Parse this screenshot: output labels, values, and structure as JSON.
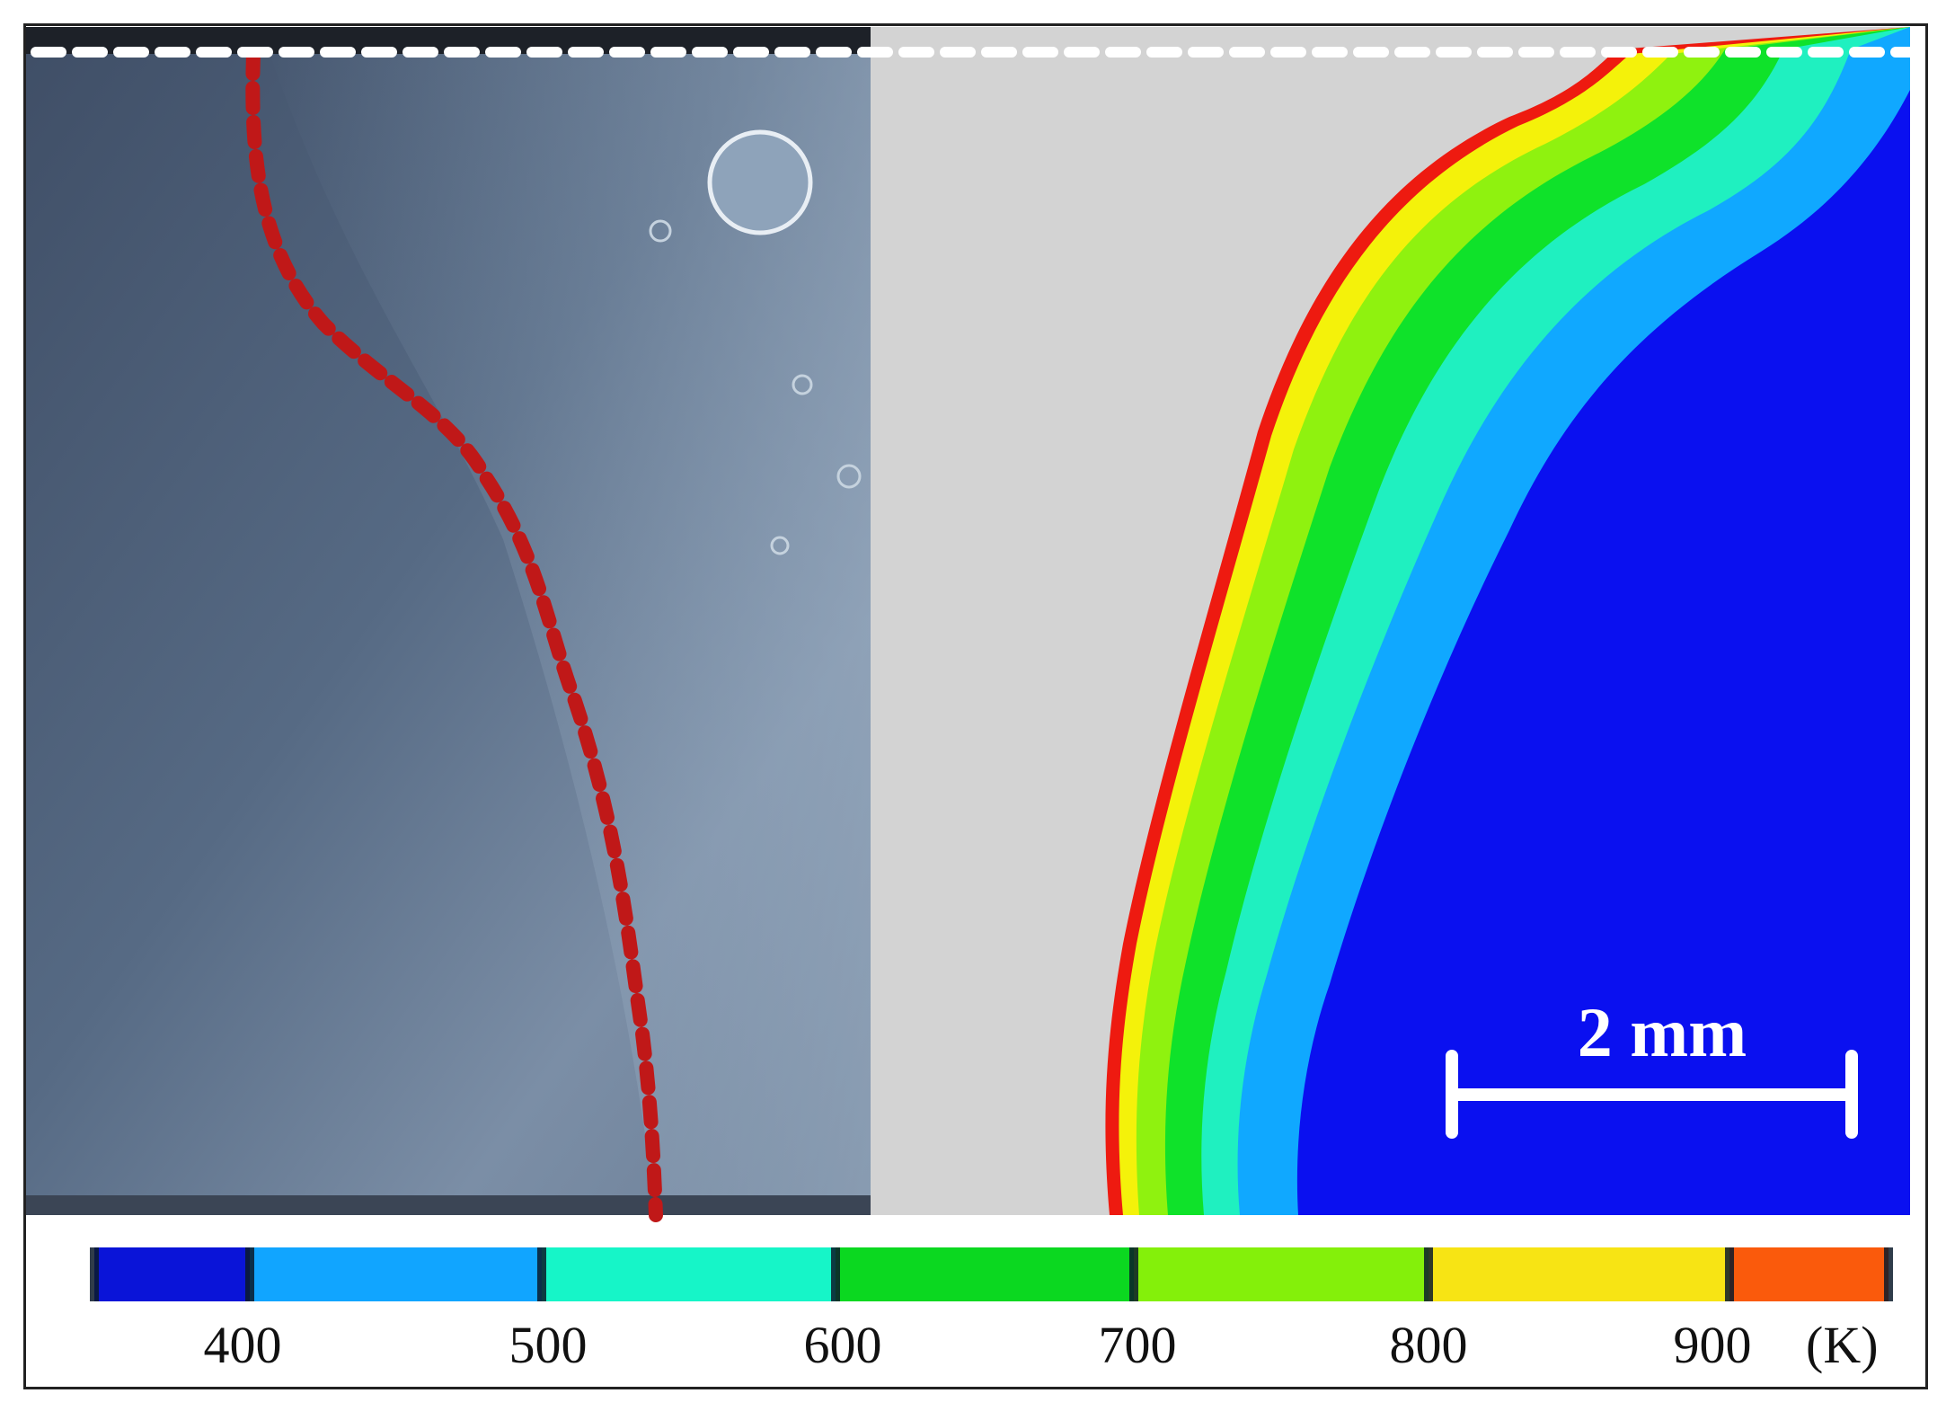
{
  "figure": {
    "scale_bar_label": "2 mm",
    "colorbar": {
      "unit": "(K)",
      "ticks": [
        "400",
        "500",
        "600",
        "700",
        "800",
        "900"
      ],
      "bands": [
        {
          "color": "#0a14d8"
        },
        {
          "color": "#11a5ff"
        },
        {
          "color": "#16f5c8"
        },
        {
          "color": "#0bd820"
        },
        {
          "color": "#84f00a"
        },
        {
          "color": "#f7e414"
        },
        {
          "color": "#fa5a0c"
        }
      ]
    },
    "colors": {
      "micrograph_base": "#5a6e86",
      "boundary_line": "#c01818",
      "surface_line": "#ffffff",
      "unmelted_region": "#d3d3d3",
      "contour_red": "#ee1a10",
      "contour_yellow": "#f4f20a",
      "contour_lime": "#8ff20f",
      "contour_green": "#0fe22a",
      "contour_cyan": "#1ff0c0",
      "contour_sky": "#10a8ff",
      "contour_blue": "#0a10f0"
    }
  }
}
